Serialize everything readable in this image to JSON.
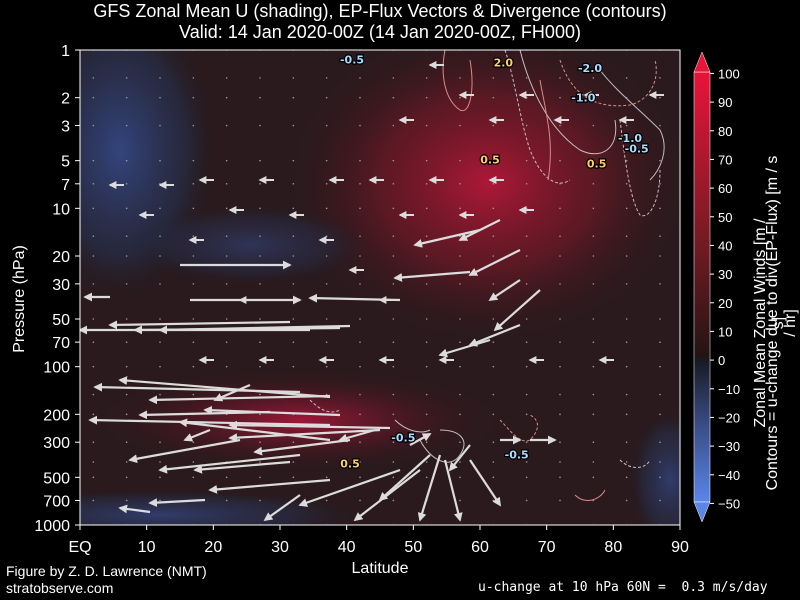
{
  "header": {
    "title_line1": "GFS Zonal Mean U (shading), EP-Flux Vectors & Divergence (contours)",
    "title_line2": "Valid: 14 Jan 2020-00Z  (14 Jan 2020-00Z, FH000)"
  },
  "footer": {
    "credit": "Figure by Z. D. Lawrence (NMT)",
    "site": "stratobserve.com",
    "note": "u-change at 10 hPa 60N =  0.3 m/s/day"
  },
  "chart_data": {
    "type": "heatmap",
    "title": "GFS Zonal Mean U (shading), EP-Flux Vectors & Divergence (contours)",
    "subtitle": "Valid: 14 Jan 2020-00Z  (14 Jan 2020-00Z, FH000)",
    "xlabel": "Latitude",
    "ylabel": "Pressure (hPa)",
    "x_ticks": [
      "EQ",
      "10",
      "20",
      "30",
      "40",
      "50",
      "60",
      "70",
      "80",
      "90"
    ],
    "y_ticks": [
      "1",
      "2",
      "3",
      "5",
      "7",
      "10",
      "20",
      "30",
      "50",
      "70",
      "100",
      "200",
      "300",
      "500",
      "700",
      "1000"
    ],
    "y_values": [
      1,
      2,
      3,
      5,
      7,
      10,
      20,
      30,
      50,
      70,
      100,
      200,
      300,
      500,
      700,
      1000
    ],
    "xlim": [
      0,
      90
    ],
    "ylim": [
      1000,
      1
    ],
    "y_scale": "log",
    "colorbar": {
      "label1": "Zonal Mean Zonal Winds  [m / s]",
      "label2": "Contours = u-change due to div(EP-Flux) [m / s / hr]",
      "ticks": [
        "100",
        "90",
        "80",
        "70",
        "60",
        "50",
        "40",
        "30",
        "20",
        "10",
        "0",
        "−10",
        "−20",
        "−30",
        "−40",
        "−50"
      ],
      "range": [
        -50,
        100
      ]
    },
    "contour_labels": [
      {
        "text": "-0.5",
        "lat": 40.8,
        "p": 1.15
      },
      {
        "text": "2.0",
        "lat": 63.5,
        "p": 1.2
      },
      {
        "text": "-2.0",
        "lat": 76.5,
        "p": 1.3
      },
      {
        "text": "-1.0",
        "lat": 75.5,
        "p": 2.0
      },
      {
        "text": "-1.0",
        "lat": 82.5,
        "p": 3.6
      },
      {
        "text": "-0.5",
        "lat": 83.5,
        "p": 4.2
      },
      {
        "text": "0.5",
        "lat": 61.5,
        "p": 4.9
      },
      {
        "text": "0.5",
        "lat": 77.5,
        "p": 5.2
      },
      {
        "text": "-0.5",
        "lat": 48.5,
        "p": 280
      },
      {
        "text": "0.5",
        "lat": 40.5,
        "p": 410
      },
      {
        "text": "-0.5",
        "lat": 65.5,
        "p": 360
      }
    ]
  }
}
